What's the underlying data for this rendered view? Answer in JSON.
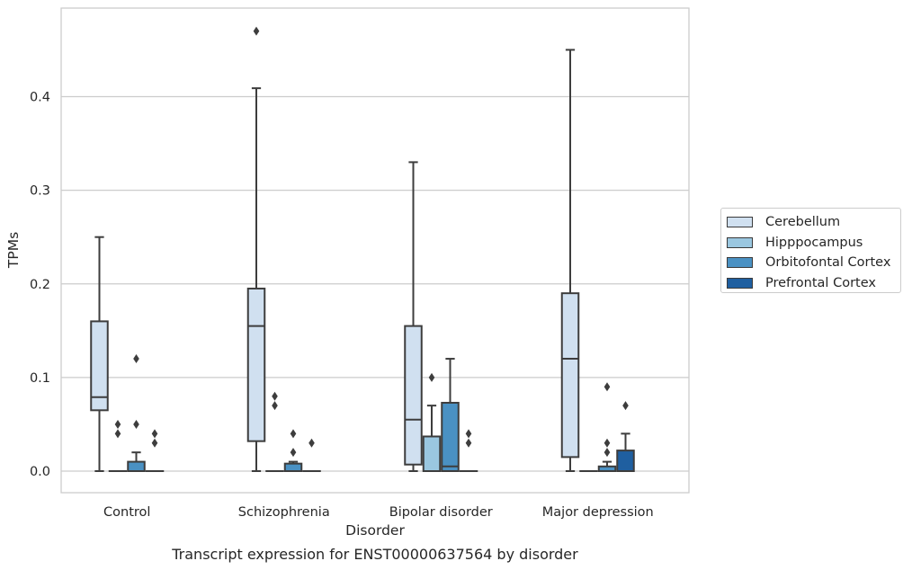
{
  "chart_data": {
    "type": "box",
    "caption": "Transcript expression for ENST00000637564 by disorder",
    "xlabel": "Disorder",
    "ylabel": "TPMs",
    "ylim": [
      -0.023,
      0.49
    ],
    "yticks": [
      0.0,
      0.1,
      0.2,
      0.3,
      0.4
    ],
    "ytick_labels": [
      "0.0",
      "0.1",
      "0.2",
      "0.3",
      "0.4"
    ],
    "grid": "horizontal",
    "legend_position": "right",
    "categories": [
      "Control",
      "Schizophrenia",
      "Bipolar disorder",
      "Major depression"
    ],
    "series": [
      {
        "name": "Cerebellum",
        "color": "#d0e0f0",
        "boxes": [
          {
            "whislo": 0.0,
            "q1": 0.065,
            "med": 0.079,
            "q3": 0.16,
            "whishi": 0.25,
            "fliers": []
          },
          {
            "whislo": 0.0,
            "q1": 0.032,
            "med": 0.155,
            "q3": 0.195,
            "whishi": 0.409,
            "fliers": [
              0.47
            ]
          },
          {
            "whislo": 0.0,
            "q1": 0.007,
            "med": 0.055,
            "q3": 0.155,
            "whishi": 0.33,
            "fliers": []
          },
          {
            "whislo": 0.0,
            "q1": 0.015,
            "med": 0.12,
            "q3": 0.19,
            "whishi": 0.45,
            "fliers": []
          }
        ]
      },
      {
        "name": "Hipppocampus",
        "color": "#9ac7e0",
        "boxes": [
          {
            "whislo": 0.0,
            "q1": 0.0,
            "med": 0.0,
            "q3": 0.0,
            "whishi": 0.0,
            "fliers": [
              0.05,
              0.04
            ]
          },
          {
            "whislo": 0.0,
            "q1": 0.0,
            "med": 0.0,
            "q3": 0.0,
            "whishi": 0.0,
            "fliers": [
              0.08,
              0.07
            ]
          },
          {
            "whislo": 0.0,
            "q1": 0.0,
            "med": 0.0,
            "q3": 0.037,
            "whishi": 0.07,
            "fliers": [
              0.1
            ]
          },
          {
            "whislo": 0.0,
            "q1": 0.0,
            "med": 0.0,
            "q3": 0.0,
            "whishi": 0.0,
            "fliers": []
          }
        ]
      },
      {
        "name": "Orbitofontal Cortex",
        "color": "#4a91c3",
        "boxes": [
          {
            "whislo": 0.0,
            "q1": 0.0,
            "med": 0.0,
            "q3": 0.01,
            "whishi": 0.02,
            "fliers": [
              0.05,
              0.12
            ]
          },
          {
            "whislo": 0.0,
            "q1": 0.0,
            "med": 0.0,
            "q3": 0.008,
            "whishi": 0.01,
            "fliers": [
              0.04,
              0.02
            ]
          },
          {
            "whislo": 0.0,
            "q1": 0.0,
            "med": 0.005,
            "q3": 0.073,
            "whishi": 0.12,
            "fliers": []
          },
          {
            "whislo": 0.0,
            "q1": 0.0,
            "med": 0.0,
            "q3": 0.005,
            "whishi": 0.01,
            "fliers": [
              0.09,
              0.03,
              0.02
            ]
          }
        ]
      },
      {
        "name": "Prefrontal Cortex",
        "color": "#1f5fa0",
        "boxes": [
          {
            "whislo": 0.0,
            "q1": 0.0,
            "med": 0.0,
            "q3": 0.0,
            "whishi": 0.0,
            "fliers": [
              0.04,
              0.03
            ]
          },
          {
            "whislo": 0.0,
            "q1": 0.0,
            "med": 0.0,
            "q3": 0.0,
            "whishi": 0.0,
            "fliers": [
              0.03
            ]
          },
          {
            "whislo": 0.0,
            "q1": 0.0,
            "med": 0.0,
            "q3": 0.0,
            "whishi": 0.0,
            "fliers": [
              0.04,
              0.03
            ]
          },
          {
            "whislo": 0.0,
            "q1": 0.0,
            "med": 0.0,
            "q3": 0.022,
            "whishi": 0.04,
            "fliers": [
              0.07
            ]
          }
        ]
      }
    ]
  }
}
